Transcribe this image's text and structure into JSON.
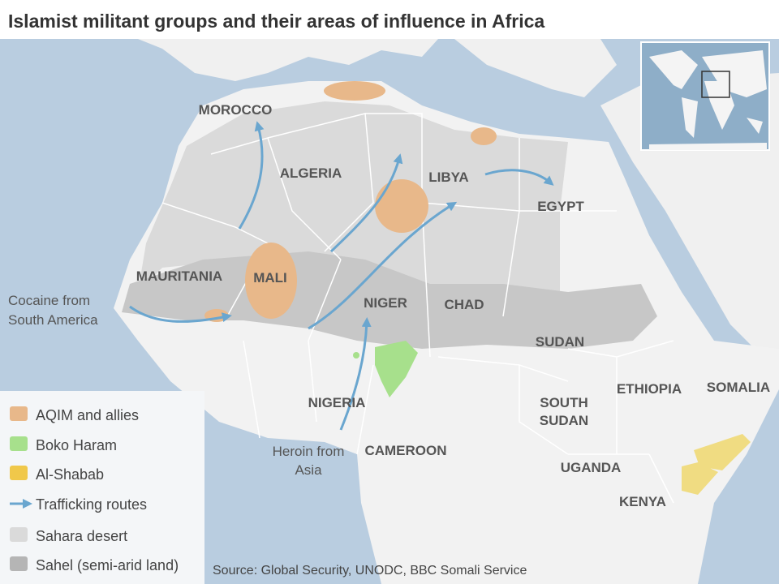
{
  "title": "Islamist militant groups and their areas of influence in Africa",
  "countries": [
    "MOROCCO",
    "ALGERIA",
    "LIBYA",
    "EGYPT",
    "MAURITANIA",
    "MALI",
    "NIGER",
    "CHAD",
    "SUDAN",
    "NIGERIA",
    "ETHIOPIA",
    "SOMALIA",
    "CAMEROON",
    "UGANDA",
    "KENYA"
  ],
  "south_sudan": [
    "SOUTH",
    "SUDAN"
  ],
  "annotations": {
    "cocaine": [
      "Cocaine from",
      "South America"
    ],
    "heroin": [
      "Heroin from",
      "Asia"
    ]
  },
  "legend": [
    "AQIM and allies",
    "Boko Haram",
    "Al-Shabab",
    "Trafficking routes",
    "Sahara desert",
    "Sahel (semi-arid land)"
  ],
  "source": "Source: Global Security, UNODC, BBC Somali Service"
}
